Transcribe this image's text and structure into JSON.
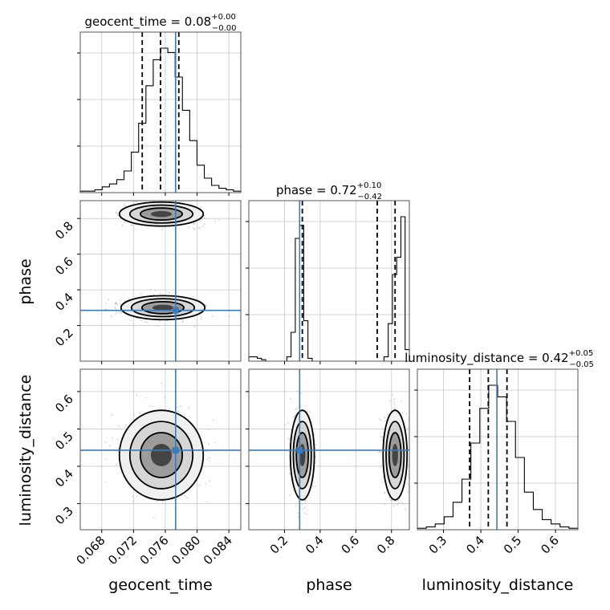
{
  "chart_data": {
    "type": "corner",
    "parameters": [
      "geocent_time",
      "phase",
      "luminosity_distance"
    ],
    "truths": {
      "geocent_time": 0.0773,
      "phase": 0.285,
      "luminosity_distance": 0.443
    },
    "colors": {
      "truth": "#3d7ab8",
      "hist": "#000000",
      "grid": "#c8c8c8",
      "scatter": "#9a9a9a"
    },
    "grid": true,
    "titles": {
      "geocent_time": {
        "name": "geocent_time",
        "value": "0.08",
        "plus": "+0.00",
        "minus": "−0.00"
      },
      "phase": {
        "name": "phase",
        "value": "0.72",
        "plus": "+0.10",
        "minus": "−0.42"
      },
      "luminosity_distance": {
        "name": "luminosity_distance",
        "value": "0.42",
        "plus": "+0.05",
        "minus": "−0.05"
      }
    },
    "axes": {
      "geocent_time": {
        "label": "geocent_time",
        "range": [
          0.0653,
          0.0855
        ],
        "ticks": [
          "0.068",
          "0.072",
          "0.076",
          "0.080",
          "0.084"
        ],
        "tick_values": [
          0.068,
          0.072,
          0.076,
          0.08,
          0.084
        ]
      },
      "phase": {
        "label": "phase",
        "range": [
          0.0,
          0.9
        ],
        "ticks": [
          "0.2",
          "0.4",
          "0.6",
          "0.8"
        ],
        "tick_values": [
          0.2,
          0.4,
          0.6,
          0.8
        ]
      },
      "luminosity_distance": {
        "label": "luminosity_distance",
        "range": [
          0.23,
          0.66
        ],
        "ticks": [
          "0.3",
          "0.4",
          "0.5",
          "0.6"
        ],
        "tick_values": [
          0.3,
          0.4,
          0.5,
          0.6
        ]
      }
    },
    "quantiles": {
      "geocent_time": [
        0.0731,
        0.0754,
        0.0777
      ],
      "phase": [
        0.3,
        0.72,
        0.82
      ],
      "luminosity_distance": [
        0.37,
        0.42,
        0.47
      ]
    },
    "histograms": {
      "geocent_time": [
        0.01,
        0.01,
        0.02,
        0.04,
        0.06,
        0.09,
        0.15,
        0.28,
        0.48,
        0.74,
        0.92,
        1.0,
        0.97,
        0.8,
        0.57,
        0.36,
        0.19,
        0.1,
        0.05,
        0.03,
        0.02,
        0.01
      ],
      "phase": [
        0.03,
        0.03,
        0.02,
        0.01,
        0.0,
        0.0,
        0.0,
        0.0,
        0.0,
        0.03,
        0.2,
        0.85,
        0.94,
        0.28,
        0.02,
        0.0,
        0.0,
        0.0,
        0.0,
        0.0,
        0.0,
        0.0,
        0.0,
        0.0,
        0.0,
        0.0,
        0.0,
        0.0,
        0.0,
        0.0,
        0.0,
        0.0,
        0.03,
        0.26,
        0.6,
        0.72,
        1.0,
        0.08
      ],
      "luminosity_distance": [
        0.01,
        0.02,
        0.04,
        0.09,
        0.19,
        0.35,
        0.6,
        0.84,
        1.0,
        0.92,
        0.75,
        0.5,
        0.26,
        0.14,
        0.07,
        0.04,
        0.02,
        0.01
      ]
    },
    "density_blobs": {
      "phase_vs_geocent_time": [
        {
          "cx": 0.0755,
          "cy": 0.825,
          "w": 1.0
        },
        {
          "cx": 0.0757,
          "cy": 0.3,
          "w": 0.9
        }
      ],
      "luminosity_distance_vs_geocent_time": [
        {
          "cx": 0.0755,
          "cy": 0.43,
          "w": 1.0
        }
      ],
      "luminosity_distance_vs_phase": [
        {
          "cx": 0.3,
          "cy": 0.43,
          "w": 0.9
        },
        {
          "cx": 0.82,
          "cy": 0.43,
          "w": 0.9
        }
      ]
    }
  }
}
